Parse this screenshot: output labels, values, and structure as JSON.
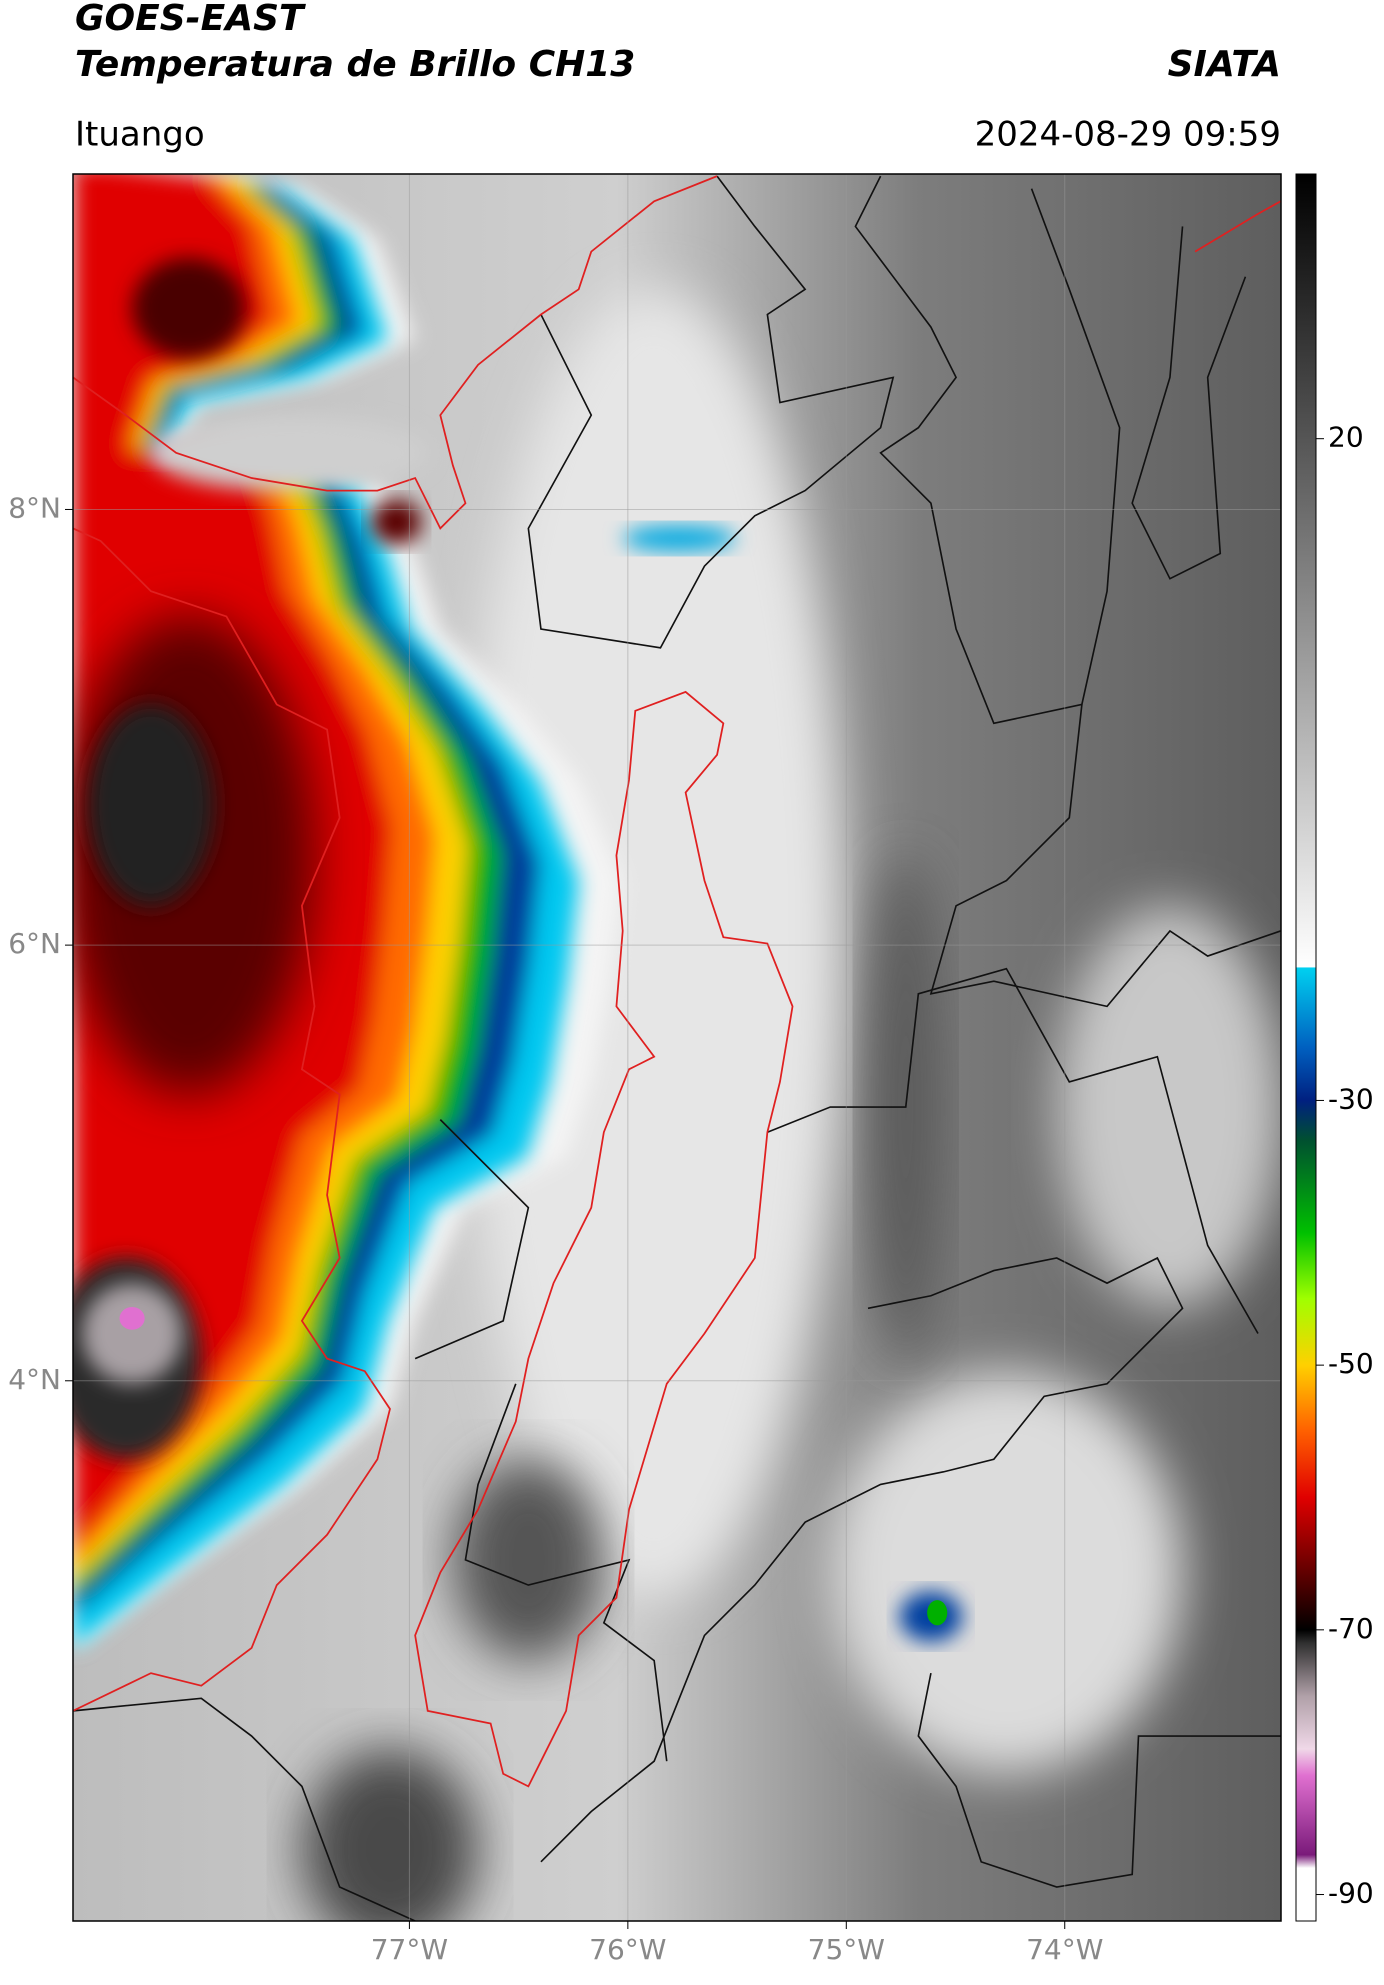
{
  "chart_data": {
    "type": "map",
    "title": "GOES-EAST",
    "subtitle": "Temperatura de Brillo CH13",
    "source": "SIATA",
    "location": "Ituango",
    "datetime": "2024-08-29 09:59",
    "xlim": [
      -78.54,
      -73.01
    ],
    "ylim": [
      1.52,
      9.54
    ],
    "xticks": [
      {
        "value": -77,
        "label": "77°W"
      },
      {
        "value": -76,
        "label": "76°W"
      },
      {
        "value": -75,
        "label": "75°W"
      },
      {
        "value": -74,
        "label": "74°W"
      }
    ],
    "yticks": [
      {
        "value": 8,
        "label": "8°N"
      },
      {
        "value": 6,
        "label": "6°N"
      },
      {
        "value": 4,
        "label": "4°N"
      }
    ],
    "grid": true,
    "colorbar": {
      "clim": [
        -92,
        40
      ],
      "ticks": [
        20,
        -30,
        -50,
        -70,
        -90
      ],
      "colormap": [
        {
          "value": -92,
          "color": "#ffffff"
        },
        {
          "value": -88,
          "color": "#ffffff"
        },
        {
          "value": -87,
          "color": "#7a1a7a"
        },
        {
          "value": -81,
          "color": "#e070d0"
        },
        {
          "value": -79,
          "color": "#f0d8e8"
        },
        {
          "value": -75,
          "color": "#b0a0a8"
        },
        {
          "value": -71,
          "color": "#303030"
        },
        {
          "value": -70,
          "color": "#000000"
        },
        {
          "value": -66,
          "color": "#5a0000"
        },
        {
          "value": -60,
          "color": "#e00000"
        },
        {
          "value": -55,
          "color": "#ff6000"
        },
        {
          "value": -50,
          "color": "#ffd000"
        },
        {
          "value": -45,
          "color": "#a0ff00"
        },
        {
          "value": -40,
          "color": "#00c000"
        },
        {
          "value": -33,
          "color": "#005030"
        },
        {
          "value": -30,
          "color": "#002080"
        },
        {
          "value": -26,
          "color": "#0060c0"
        },
        {
          "value": -20,
          "color": "#00d0f0"
        },
        {
          "value": -19.9,
          "color": "#ffffff"
        },
        {
          "value": 40,
          "color": "#000000"
        }
      ]
    }
  }
}
